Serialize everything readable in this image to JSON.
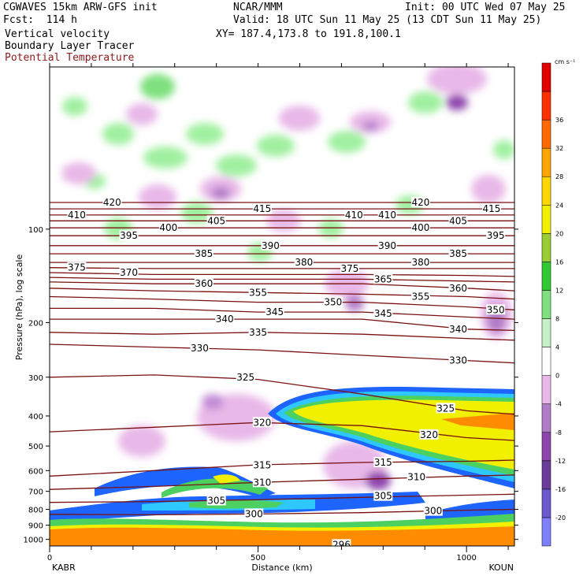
{
  "header": {
    "model": "CGWAVES 15km ARW-GFS init",
    "forecast": "Fcst:  114 h",
    "field1": "Vertical velocity",
    "field2": "Boundary Layer Tracer",
    "field3": "Potential Temperature",
    "center": "NCAR/MMM",
    "init": "Init: 00 UTC Wed 07 May 25",
    "valid": "Valid: 18 UTC Sun 11 May 25 (13 CDT Sun 11 May 25)",
    "xy": "XY= 187.4,173.8 to 191.8,100.1"
  },
  "colors": {
    "theta": "#7a1010",
    "tracer_outer": "#1e64ff",
    "tracer_inner": "#2ec8ff",
    "tracer_mid": "#4cd060",
    "tracer_core": "#f0f000",
    "tracer_hot": "#ff8c00",
    "vv_up": "#a0f0a0",
    "vv_down": "#e8b8e8"
  },
  "chart_data": {
    "type": "heatmap",
    "xlabel": "Distance (km)",
    "ylabel": "Pressure (hPa), log scale",
    "xlim": [
      0,
      1115
    ],
    "ylim": [
      1050,
      30
    ],
    "yscale": "log",
    "x_ticks": [
      0,
      500,
      1000
    ],
    "y_ticks": [
      100,
      200,
      300,
      400,
      500,
      600,
      700,
      800,
      900,
      1000
    ],
    "start_station": "KABR",
    "end_station": "KOUN",
    "colorbar": {
      "units": "cm s⁻¹",
      "levels": [
        -20,
        -16,
        -12,
        -8,
        -4,
        0,
        4,
        8,
        12,
        16,
        20,
        24,
        28,
        32,
        36
      ],
      "colors": [
        "#8080ff",
        "#6a5acd",
        "#6a3d9a",
        "#8e44ad",
        "#b07cc8",
        "#e8b8e8",
        "#ffffff",
        "#c8f0c8",
        "#80e080",
        "#32c832",
        "#9acd32",
        "#f0f000",
        "#ffd700",
        "#ffa500",
        "#ff6a00",
        "#ff3000",
        "#e00000"
      ]
    },
    "theta_contours": [
      {
        "value": 300,
        "points": [
          [
            0,
            830
          ],
          [
            250,
            833
          ],
          [
            500,
            828
          ],
          [
            750,
            820
          ],
          [
            1000,
            805
          ],
          [
            1115,
            800
          ]
        ]
      },
      {
        "value": 305,
        "points": [
          [
            0,
            760
          ],
          [
            250,
            755
          ],
          [
            500,
            745
          ],
          [
            750,
            732
          ],
          [
            1000,
            720
          ],
          [
            1115,
            715
          ]
        ]
      },
      {
        "value": 310,
        "points": [
          [
            0,
            690
          ],
          [
            250,
            675
          ],
          [
            500,
            655
          ],
          [
            750,
            640
          ],
          [
            1000,
            625
          ],
          [
            1115,
            620
          ]
        ]
      },
      {
        "value": 315,
        "points": [
          [
            0,
            625
          ],
          [
            250,
            600
          ],
          [
            500,
            575
          ],
          [
            750,
            565
          ],
          [
            1000,
            560
          ],
          [
            1115,
            555
          ]
        ]
      },
      {
        "value": 320,
        "points": [
          [
            0,
            450
          ],
          [
            250,
            435
          ],
          [
            500,
            420
          ],
          [
            750,
            430
          ],
          [
            1000,
            470
          ],
          [
            1115,
            480
          ]
        ]
      },
      {
        "value": 325,
        "points": [
          [
            0,
            300
          ],
          [
            250,
            295
          ],
          [
            500,
            305
          ],
          [
            750,
            340
          ],
          [
            1000,
            385
          ],
          [
            1115,
            395
          ]
        ]
      },
      {
        "value": 330,
        "points": [
          [
            0,
            235
          ],
          [
            250,
            240
          ],
          [
            500,
            245
          ],
          [
            750,
            255
          ],
          [
            1000,
            265
          ],
          [
            1115,
            270
          ]
        ]
      },
      {
        "value": 335,
        "points": [
          [
            0,
            215
          ],
          [
            250,
            218
          ],
          [
            500,
            215
          ],
          [
            750,
            218
          ],
          [
            1000,
            225
          ],
          [
            1115,
            228
          ]
        ]
      },
      {
        "value": 340,
        "points": [
          [
            0,
            195
          ],
          [
            250,
            195
          ],
          [
            500,
            195
          ],
          [
            750,
            195
          ],
          [
            1000,
            210
          ],
          [
            1115,
            212
          ]
        ]
      },
      {
        "value": 345,
        "points": [
          [
            0,
            180
          ],
          [
            250,
            180
          ],
          [
            500,
            185
          ],
          [
            750,
            185
          ],
          [
            1000,
            192
          ],
          [
            1115,
            195
          ]
        ]
      },
      {
        "value": 350,
        "points": [
          [
            0,
            165
          ],
          [
            250,
            168
          ],
          [
            500,
            172
          ],
          [
            750,
            172
          ],
          [
            1000,
            178
          ],
          [
            1115,
            182
          ]
        ]
      },
      {
        "value": 355,
        "points": [
          [
            0,
            155
          ],
          [
            250,
            158
          ],
          [
            500,
            160
          ],
          [
            750,
            162
          ],
          [
            1000,
            165
          ],
          [
            1115,
            168
          ]
        ]
      },
      {
        "value": 360,
        "points": [
          [
            0,
            148
          ],
          [
            250,
            150
          ],
          [
            500,
            150
          ],
          [
            750,
            150
          ],
          [
            1000,
            155
          ],
          [
            1115,
            158
          ]
        ]
      },
      {
        "value": 365,
        "points": [
          [
            0,
            143
          ],
          [
            250,
            145
          ],
          [
            500,
            145
          ],
          [
            750,
            145
          ],
          [
            1000,
            147
          ],
          [
            1115,
            148
          ]
        ]
      },
      {
        "value": 370,
        "points": [
          [
            0,
            138
          ],
          [
            250,
            140
          ],
          [
            500,
            140
          ],
          [
            750,
            140
          ],
          [
            1000,
            141
          ],
          [
            1115,
            142
          ]
        ]
      },
      {
        "value": 375,
        "points": [
          [
            0,
            133
          ],
          [
            250,
            134
          ],
          [
            500,
            134
          ],
          [
            750,
            134
          ],
          [
            1000,
            134
          ],
          [
            1115,
            134
          ]
        ]
      },
      {
        "value": 380,
        "points": [
          [
            0,
            128
          ],
          [
            250,
            128
          ],
          [
            500,
            128
          ],
          [
            750,
            128
          ],
          [
            1000,
            128
          ],
          [
            1115,
            128
          ]
        ]
      },
      {
        "value": 385,
        "points": [
          [
            0,
            120
          ],
          [
            250,
            120
          ],
          [
            500,
            120
          ],
          [
            750,
            120
          ],
          [
            1000,
            120
          ],
          [
            1115,
            120
          ]
        ]
      },
      {
        "value": 390,
        "points": [
          [
            0,
            113
          ],
          [
            250,
            113
          ],
          [
            500,
            113
          ],
          [
            750,
            113
          ],
          [
            1000,
            113
          ],
          [
            1115,
            113
          ]
        ]
      },
      {
        "value": 395,
        "points": [
          [
            0,
            105
          ],
          [
            250,
            105
          ],
          [
            500,
            105
          ],
          [
            750,
            105
          ],
          [
            1000,
            105
          ],
          [
            1115,
            105
          ]
        ]
      },
      {
        "value": 400,
        "points": [
          [
            0,
            99
          ],
          [
            250,
            99
          ],
          [
            500,
            99
          ],
          [
            750,
            99
          ],
          [
            1000,
            99
          ],
          [
            1115,
            99
          ]
        ]
      },
      {
        "value": 405,
        "points": [
          [
            0,
            94
          ],
          [
            250,
            94
          ],
          [
            500,
            94
          ],
          [
            750,
            94
          ],
          [
            1000,
            94
          ],
          [
            1115,
            94
          ]
        ]
      },
      {
        "value": 410,
        "points": [
          [
            0,
            90
          ],
          [
            250,
            90
          ],
          [
            500,
            90
          ],
          [
            750,
            90
          ],
          [
            1000,
            90
          ],
          [
            1115,
            90
          ]
        ]
      },
      {
        "value": 415,
        "points": [
          [
            0,
            86
          ],
          [
            250,
            86
          ],
          [
            500,
            86
          ],
          [
            750,
            86
          ],
          [
            1000,
            86
          ],
          [
            1115,
            86
          ]
        ]
      },
      {
        "value": 420,
        "points": [
          [
            0,
            82
          ],
          [
            250,
            82
          ],
          [
            500,
            82
          ],
          [
            750,
            82
          ],
          [
            1000,
            82
          ],
          [
            1115,
            82
          ]
        ]
      }
    ],
    "theta_labels": [
      {
        "text": "420",
        "x": 150,
        "p": 82
      },
      {
        "text": "420",
        "x": 890,
        "p": 82
      },
      {
        "text": "415",
        "x": 510,
        "p": 86
      },
      {
        "text": "415",
        "x": 1060,
        "p": 86
      },
      {
        "text": "410",
        "x": 65,
        "p": 90
      },
      {
        "text": "410",
        "x": 730,
        "p": 90
      },
      {
        "text": "410",
        "x": 810,
        "p": 90
      },
      {
        "text": "405",
        "x": 400,
        "p": 94
      },
      {
        "text": "405",
        "x": 980,
        "p": 94
      },
      {
        "text": "400",
        "x": 285,
        "p": 99
      },
      {
        "text": "400",
        "x": 890,
        "p": 99
      },
      {
        "text": "395",
        "x": 190,
        "p": 105
      },
      {
        "text": "395",
        "x": 1070,
        "p": 105
      },
      {
        "text": "390",
        "x": 530,
        "p": 113
      },
      {
        "text": "390",
        "x": 810,
        "p": 113
      },
      {
        "text": "385",
        "x": 370,
        "p": 120
      },
      {
        "text": "385",
        "x": 980,
        "p": 120
      },
      {
        "text": "380",
        "x": 610,
        "p": 128
      },
      {
        "text": "380",
        "x": 890,
        "p": 128
      },
      {
        "text": "375",
        "x": 65,
        "p": 133
      },
      {
        "text": "375",
        "x": 720,
        "p": 134
      },
      {
        "text": "370",
        "x": 190,
        "p": 138
      },
      {
        "text": "365",
        "x": 800,
        "p": 145
      },
      {
        "text": "360",
        "x": 370,
        "p": 150
      },
      {
        "text": "360",
        "x": 980,
        "p": 155
      },
      {
        "text": "355",
        "x": 500,
        "p": 160
      },
      {
        "text": "355",
        "x": 890,
        "p": 165
      },
      {
        "text": "350",
        "x": 680,
        "p": 172
      },
      {
        "text": "350",
        "x": 1070,
        "p": 182
      },
      {
        "text": "345",
        "x": 540,
        "p": 185
      },
      {
        "text": "345",
        "x": 800,
        "p": 187
      },
      {
        "text": "340",
        "x": 420,
        "p": 195
      },
      {
        "text": "340",
        "x": 980,
        "p": 210
      },
      {
        "text": "335",
        "x": 500,
        "p": 215
      },
      {
        "text": "330",
        "x": 360,
        "p": 242
      },
      {
        "text": "330",
        "x": 980,
        "p": 265
      },
      {
        "text": "325",
        "x": 470,
        "p": 300
      },
      {
        "text": "325",
        "x": 950,
        "p": 378
      },
      {
        "text": "320",
        "x": 510,
        "p": 420
      },
      {
        "text": "320",
        "x": 910,
        "p": 460
      },
      {
        "text": "315",
        "x": 510,
        "p": 577
      },
      {
        "text": "315",
        "x": 800,
        "p": 565
      },
      {
        "text": "310",
        "x": 510,
        "p": 655
      },
      {
        "text": "310",
        "x": 880,
        "p": 630
      },
      {
        "text": "305",
        "x": 400,
        "p": 750
      },
      {
        "text": "305",
        "x": 800,
        "p": 725
      },
      {
        "text": "300",
        "x": 490,
        "p": 828
      },
      {
        "text": "300",
        "x": 920,
        "p": 810
      },
      {
        "text": "296",
        "x": 700,
        "p": 1040
      }
    ]
  }
}
